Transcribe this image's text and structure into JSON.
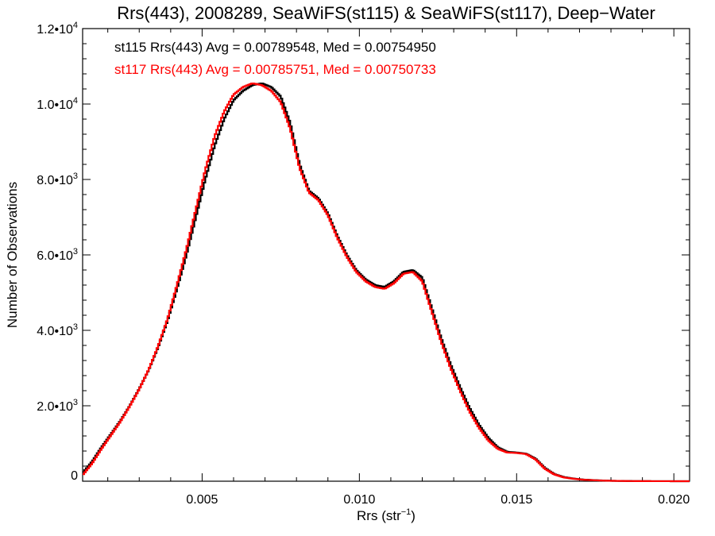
{
  "chart_data": {
    "type": "line",
    "title": "Rrs(443), 2008289, SeaWiFS(st115) & SeaWiFS(st117), Deep−Water",
    "xlabel_main": "Rrs (str",
    "xlabel_sup": "−1",
    "xlabel_close": ")",
    "ylabel": "Number of Observations",
    "xlim": [
      0.0012,
      0.0205
    ],
    "ylim": [
      0,
      12000
    ],
    "x_ticks": [
      {
        "value": 0.005,
        "label": "0.005"
      },
      {
        "value": 0.01,
        "label": "0.010"
      },
      {
        "value": 0.015,
        "label": "0.015"
      },
      {
        "value": 0.02,
        "label": "0.020"
      }
    ],
    "y_ticks": [
      {
        "value": 0,
        "mant": "0",
        "exp": ""
      },
      {
        "value": 2000,
        "mant": "2.0•10",
        "exp": "3"
      },
      {
        "value": 4000,
        "mant": "4.0•10",
        "exp": "3"
      },
      {
        "value": 6000,
        "mant": "6.0•10",
        "exp": "3"
      },
      {
        "value": 8000,
        "mant": "8.0•10",
        "exp": "3"
      },
      {
        "value": 10000,
        "mant": "1.0•10",
        "exp": "4"
      },
      {
        "value": 12000,
        "mant": "1.2•10",
        "exp": "4"
      }
    ],
    "annotations": [
      {
        "text": "st115 Rrs(443) Avg = 0.00789548, Med = 0.00754950",
        "color": "#000000"
      },
      {
        "text": "st117 Rrs(443) Avg = 0.00785751, Med = 0.00750733",
        "color": "#ff0000"
      }
    ],
    "grid": false,
    "legend": "none",
    "bin_width": 5e-05,
    "series": [
      {
        "color": "#000000",
        "x": [
          0.0012,
          0.0015,
          0.0018,
          0.0021,
          0.0024,
          0.0027,
          0.003,
          0.0033,
          0.0036,
          0.0039,
          0.0042,
          0.0045,
          0.0048,
          0.0051,
          0.0054,
          0.0057,
          0.006,
          0.0063,
          0.0066,
          0.0069,
          0.0072,
          0.0075,
          0.0078,
          0.0081,
          0.0084,
          0.0087,
          0.009,
          0.0093,
          0.0096,
          0.0099,
          0.0102,
          0.0105,
          0.0108,
          0.0111,
          0.0114,
          0.0117,
          0.012,
          0.0123,
          0.0126,
          0.0129,
          0.0132,
          0.0135,
          0.0138,
          0.0141,
          0.0144,
          0.0147,
          0.015,
          0.0153,
          0.0156,
          0.0159,
          0.0162,
          0.0165,
          0.0168,
          0.0171,
          0.0174,
          0.0177,
          0.018,
          0.0183,
          0.0186,
          0.0189,
          0.0192,
          0.0195,
          0.0198,
          0.0201,
          0.0204
        ],
        "y": [
          220,
          520,
          900,
          1250,
          1600,
          2000,
          2450,
          2950,
          3550,
          4250,
          5100,
          6000,
          7000,
          8000,
          8900,
          9600,
          10100,
          10350,
          10500,
          10550,
          10450,
          10200,
          9500,
          8400,
          7700,
          7500,
          7100,
          6500,
          6000,
          5600,
          5350,
          5200,
          5150,
          5300,
          5550,
          5600,
          5400,
          4600,
          3800,
          3100,
          2500,
          1950,
          1500,
          1150,
          900,
          780,
          760,
          730,
          600,
          350,
          190,
          110,
          70,
          45,
          30,
          20,
          12,
          8,
          5,
          3,
          2,
          1,
          1,
          0,
          0
        ]
      },
      {
        "color": "#ff0000",
        "x": [
          0.0012,
          0.0015,
          0.0018,
          0.0021,
          0.0024,
          0.0027,
          0.003,
          0.0033,
          0.0036,
          0.0039,
          0.0042,
          0.0045,
          0.0048,
          0.0051,
          0.0054,
          0.0057,
          0.006,
          0.0063,
          0.0066,
          0.0069,
          0.0072,
          0.0075,
          0.0078,
          0.0081,
          0.0084,
          0.0087,
          0.009,
          0.0093,
          0.0096,
          0.0099,
          0.0102,
          0.0105,
          0.0108,
          0.0111,
          0.0114,
          0.0117,
          0.012,
          0.0123,
          0.0126,
          0.0129,
          0.0132,
          0.0135,
          0.0138,
          0.0141,
          0.0144,
          0.0147,
          0.015,
          0.0153,
          0.0156,
          0.0159,
          0.0162,
          0.0165,
          0.0168,
          0.0171,
          0.0174,
          0.0177,
          0.018,
          0.0183,
          0.0186,
          0.0189,
          0.0192,
          0.0195,
          0.0198,
          0.0201,
          0.0204
        ],
        "y": [
          160,
          470,
          860,
          1220,
          1580,
          1990,
          2440,
          2960,
          3580,
          4300,
          5200,
          6150,
          7200,
          8250,
          9150,
          9800,
          10250,
          10450,
          10550,
          10500,
          10350,
          10050,
          9350,
          8300,
          7650,
          7450,
          7050,
          6450,
          5950,
          5550,
          5300,
          5150,
          5100,
          5250,
          5500,
          5550,
          5300,
          4500,
          3700,
          3000,
          2400,
          1850,
          1420,
          1080,
          860,
          760,
          750,
          720,
          580,
          330,
          180,
          100,
          65,
          40,
          28,
          18,
          11,
          7,
          4,
          3,
          2,
          1,
          1,
          0,
          0
        ]
      }
    ]
  }
}
